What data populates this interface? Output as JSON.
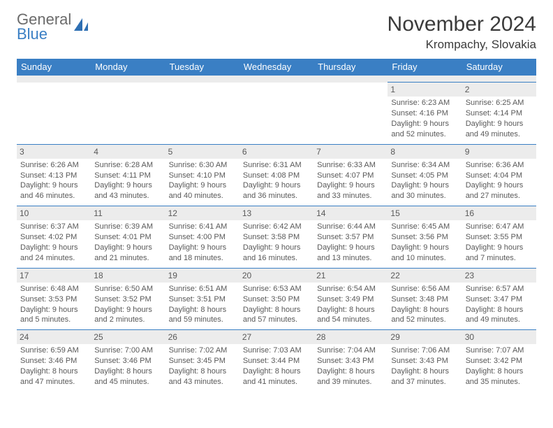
{
  "logo": {
    "line1": "General",
    "line2": "Blue"
  },
  "title": "November 2024",
  "location": "Krompachy, Slovakia",
  "colors": {
    "header_bg": "#3a7fc4",
    "header_fg": "#ffffff",
    "daynum_bg": "#ececec",
    "border": "#3a7fc4",
    "text": "#595959"
  },
  "weekdays": [
    "Sunday",
    "Monday",
    "Tuesday",
    "Wednesday",
    "Thursday",
    "Friday",
    "Saturday"
  ],
  "weeks": [
    [
      null,
      null,
      null,
      null,
      null,
      {
        "n": "1",
        "sr": "Sunrise: 6:23 AM",
        "ss": "Sunset: 4:16 PM",
        "d1": "Daylight: 9 hours",
        "d2": "and 52 minutes."
      },
      {
        "n": "2",
        "sr": "Sunrise: 6:25 AM",
        "ss": "Sunset: 4:14 PM",
        "d1": "Daylight: 9 hours",
        "d2": "and 49 minutes."
      }
    ],
    [
      {
        "n": "3",
        "sr": "Sunrise: 6:26 AM",
        "ss": "Sunset: 4:13 PM",
        "d1": "Daylight: 9 hours",
        "d2": "and 46 minutes."
      },
      {
        "n": "4",
        "sr": "Sunrise: 6:28 AM",
        "ss": "Sunset: 4:11 PM",
        "d1": "Daylight: 9 hours",
        "d2": "and 43 minutes."
      },
      {
        "n": "5",
        "sr": "Sunrise: 6:30 AM",
        "ss": "Sunset: 4:10 PM",
        "d1": "Daylight: 9 hours",
        "d2": "and 40 minutes."
      },
      {
        "n": "6",
        "sr": "Sunrise: 6:31 AM",
        "ss": "Sunset: 4:08 PM",
        "d1": "Daylight: 9 hours",
        "d2": "and 36 minutes."
      },
      {
        "n": "7",
        "sr": "Sunrise: 6:33 AM",
        "ss": "Sunset: 4:07 PM",
        "d1": "Daylight: 9 hours",
        "d2": "and 33 minutes."
      },
      {
        "n": "8",
        "sr": "Sunrise: 6:34 AM",
        "ss": "Sunset: 4:05 PM",
        "d1": "Daylight: 9 hours",
        "d2": "and 30 minutes."
      },
      {
        "n": "9",
        "sr": "Sunrise: 6:36 AM",
        "ss": "Sunset: 4:04 PM",
        "d1": "Daylight: 9 hours",
        "d2": "and 27 minutes."
      }
    ],
    [
      {
        "n": "10",
        "sr": "Sunrise: 6:37 AM",
        "ss": "Sunset: 4:02 PM",
        "d1": "Daylight: 9 hours",
        "d2": "and 24 minutes."
      },
      {
        "n": "11",
        "sr": "Sunrise: 6:39 AM",
        "ss": "Sunset: 4:01 PM",
        "d1": "Daylight: 9 hours",
        "d2": "and 21 minutes."
      },
      {
        "n": "12",
        "sr": "Sunrise: 6:41 AM",
        "ss": "Sunset: 4:00 PM",
        "d1": "Daylight: 9 hours",
        "d2": "and 18 minutes."
      },
      {
        "n": "13",
        "sr": "Sunrise: 6:42 AM",
        "ss": "Sunset: 3:58 PM",
        "d1": "Daylight: 9 hours",
        "d2": "and 16 minutes."
      },
      {
        "n": "14",
        "sr": "Sunrise: 6:44 AM",
        "ss": "Sunset: 3:57 PM",
        "d1": "Daylight: 9 hours",
        "d2": "and 13 minutes."
      },
      {
        "n": "15",
        "sr": "Sunrise: 6:45 AM",
        "ss": "Sunset: 3:56 PM",
        "d1": "Daylight: 9 hours",
        "d2": "and 10 minutes."
      },
      {
        "n": "16",
        "sr": "Sunrise: 6:47 AM",
        "ss": "Sunset: 3:55 PM",
        "d1": "Daylight: 9 hours",
        "d2": "and 7 minutes."
      }
    ],
    [
      {
        "n": "17",
        "sr": "Sunrise: 6:48 AM",
        "ss": "Sunset: 3:53 PM",
        "d1": "Daylight: 9 hours",
        "d2": "and 5 minutes."
      },
      {
        "n": "18",
        "sr": "Sunrise: 6:50 AM",
        "ss": "Sunset: 3:52 PM",
        "d1": "Daylight: 9 hours",
        "d2": "and 2 minutes."
      },
      {
        "n": "19",
        "sr": "Sunrise: 6:51 AM",
        "ss": "Sunset: 3:51 PM",
        "d1": "Daylight: 8 hours",
        "d2": "and 59 minutes."
      },
      {
        "n": "20",
        "sr": "Sunrise: 6:53 AM",
        "ss": "Sunset: 3:50 PM",
        "d1": "Daylight: 8 hours",
        "d2": "and 57 minutes."
      },
      {
        "n": "21",
        "sr": "Sunrise: 6:54 AM",
        "ss": "Sunset: 3:49 PM",
        "d1": "Daylight: 8 hours",
        "d2": "and 54 minutes."
      },
      {
        "n": "22",
        "sr": "Sunrise: 6:56 AM",
        "ss": "Sunset: 3:48 PM",
        "d1": "Daylight: 8 hours",
        "d2": "and 52 minutes."
      },
      {
        "n": "23",
        "sr": "Sunrise: 6:57 AM",
        "ss": "Sunset: 3:47 PM",
        "d1": "Daylight: 8 hours",
        "d2": "and 49 minutes."
      }
    ],
    [
      {
        "n": "24",
        "sr": "Sunrise: 6:59 AM",
        "ss": "Sunset: 3:46 PM",
        "d1": "Daylight: 8 hours",
        "d2": "and 47 minutes."
      },
      {
        "n": "25",
        "sr": "Sunrise: 7:00 AM",
        "ss": "Sunset: 3:46 PM",
        "d1": "Daylight: 8 hours",
        "d2": "and 45 minutes."
      },
      {
        "n": "26",
        "sr": "Sunrise: 7:02 AM",
        "ss": "Sunset: 3:45 PM",
        "d1": "Daylight: 8 hours",
        "d2": "and 43 minutes."
      },
      {
        "n": "27",
        "sr": "Sunrise: 7:03 AM",
        "ss": "Sunset: 3:44 PM",
        "d1": "Daylight: 8 hours",
        "d2": "and 41 minutes."
      },
      {
        "n": "28",
        "sr": "Sunrise: 7:04 AM",
        "ss": "Sunset: 3:43 PM",
        "d1": "Daylight: 8 hours",
        "d2": "and 39 minutes."
      },
      {
        "n": "29",
        "sr": "Sunrise: 7:06 AM",
        "ss": "Sunset: 3:43 PM",
        "d1": "Daylight: 8 hours",
        "d2": "and 37 minutes."
      },
      {
        "n": "30",
        "sr": "Sunrise: 7:07 AM",
        "ss": "Sunset: 3:42 PM",
        "d1": "Daylight: 8 hours",
        "d2": "and 35 minutes."
      }
    ]
  ]
}
